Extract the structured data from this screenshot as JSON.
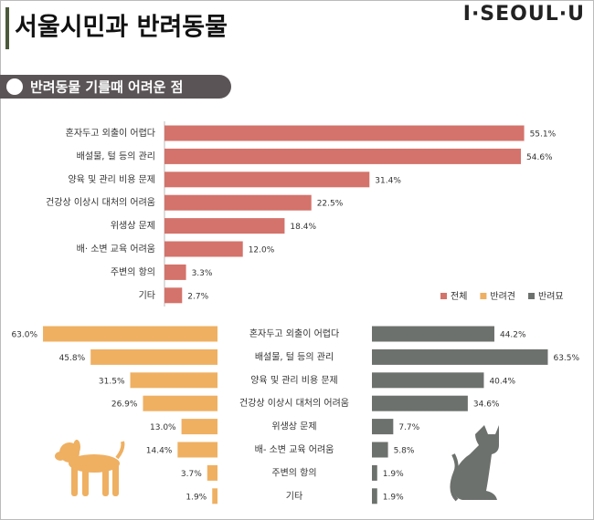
{
  "header": {
    "title": "서울시민과 반려동물",
    "logo": "I·SEOUL·U",
    "subtitle": "반려동물  기를때 어려운 점"
  },
  "chart_data": [
    {
      "type": "hbar",
      "legend": "lower right",
      "xlim": [
        0,
        56
      ],
      "categories": [
        "혼자두고 외출이 어렵다",
        "배설물, 털 등의 관리",
        "양육 및 관리 비용 문제",
        "건강상 이상시 대처의 어려움",
        "위생상 문제",
        "배· 소변 교육 어려움",
        "주변의 항의",
        "기타"
      ],
      "series": [
        {
          "name": "전체",
          "color": "#d4736b",
          "values": [
            55.1,
            54.6,
            31.4,
            22.5,
            18.4,
            12.0,
            3.3,
            2.7
          ],
          "value_labels": [
            "55.1%",
            "54.6%",
            "31.4%",
            "22.5%",
            "18.4%",
            "12.0%",
            "3.3%",
            "2.7%"
          ]
        }
      ]
    },
    {
      "type": "hbar-left",
      "xlim": [
        0,
        64
      ],
      "categories": [
        "혼자두고 외출이 어렵다",
        "배설물, 털 등의 관리",
        "양육 및 관리 비용 문제",
        "건강상 이상시 대처의 어려움",
        "위생상 문제",
        "배- 소변 교육 어려움",
        "주변의 항의",
        "기타"
      ],
      "series": [
        {
          "name": "반려견",
          "color": "#efb062",
          "values": [
            63.0,
            45.8,
            31.5,
            26.9,
            13.0,
            14.4,
            3.7,
            1.9
          ],
          "value_labels": [
            "63.0%",
            "45.8%",
            "31.5%",
            "26.9%",
            "13.0%",
            "14.4%",
            "3.7%",
            "1.9%"
          ]
        }
      ]
    },
    {
      "type": "hbar",
      "xlim": [
        0,
        64
      ],
      "series": [
        {
          "name": "반려묘",
          "color": "#6d716e",
          "values": [
            44.2,
            63.5,
            40.4,
            34.6,
            7.7,
            5.8,
            1.9,
            1.9
          ],
          "value_labels": [
            "44.2%",
            "63.5%",
            "40.4%",
            "34.6%",
            "7.7%",
            "5.8%",
            "1.9%",
            "1.9%"
          ]
        }
      ]
    }
  ]
}
